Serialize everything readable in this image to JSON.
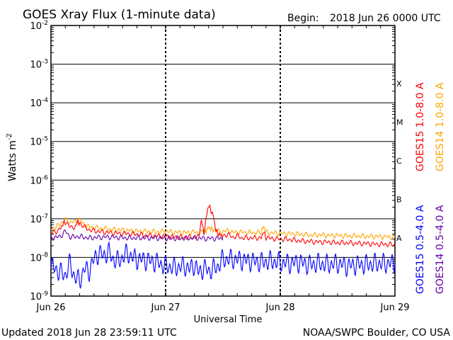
{
  "chart_data": {
    "type": "line",
    "title": "GOES Xray Flux (1-minute data)",
    "begin_label": "Begin:",
    "begin_value": "2018 Jun 26 0000 UTC",
    "xlabel": "Universal Time",
    "ylabel_main": "Watts m",
    "ylabel_exp": "-2",
    "yscale": "log",
    "ylim": [
      1e-09,
      0.01
    ],
    "xlim": [
      0,
      72
    ],
    "x_unit": "hours since 2018 Jun 26 0000 UTC",
    "x_ticks": [
      {
        "x": 0,
        "label": "Jun 26"
      },
      {
        "x": 24,
        "label": "Jun 27"
      },
      {
        "x": 48,
        "label": "Jun 28"
      },
      {
        "x": 72,
        "label": "Jun 29"
      }
    ],
    "y_ticks": [
      {
        "exp": -2,
        "base": "10"
      },
      {
        "exp": -3,
        "base": "10"
      },
      {
        "exp": -4,
        "base": "10"
      },
      {
        "exp": -5,
        "base": "10"
      },
      {
        "exp": -6,
        "base": "10"
      },
      {
        "exp": -7,
        "base": "10"
      },
      {
        "exp": -8,
        "base": "10"
      },
      {
        "exp": -9,
        "base": "10"
      }
    ],
    "flare_classes": [
      {
        "label": "X",
        "value": 0.0001
      },
      {
        "label": "M",
        "value": 1e-05
      },
      {
        "label": "C",
        "value": 1e-06
      },
      {
        "label": "B",
        "value": 1e-07
      },
      {
        "label": "A",
        "value": 1e-08
      }
    ],
    "series": [
      {
        "name": "GOES15 1.0-8.0 A",
        "color": "#ff0000",
        "x": [
          0,
          1,
          2,
          2.5,
          3,
          4,
          5,
          5.5,
          6,
          7,
          8,
          9,
          10,
          12,
          14,
          16,
          18,
          20,
          22,
          24,
          26,
          28,
          30,
          31,
          31.5,
          32,
          32.5,
          33,
          33.5,
          34,
          34.5,
          35,
          35.5,
          36,
          37,
          38,
          39,
          40,
          42,
          44,
          44.5,
          45,
          46,
          48,
          50,
          52,
          54,
          56,
          58,
          60,
          62,
          64,
          66,
          68,
          70,
          72
        ],
        "y": [
          4.3e-08,
          4.6e-08,
          5.6e-08,
          7.2e-08,
          8.3e-08,
          6.2e-08,
          6.1e-08,
          8.2e-08,
          7.9e-08,
          6.1e-08,
          5.2e-08,
          4.9e-08,
          4.7e-08,
          4.4e-08,
          4.2e-08,
          4.1e-08,
          4e-08,
          3.7e-08,
          3.6e-08,
          3.5e-08,
          3.4e-08,
          3.3e-08,
          3.3e-08,
          3.4e-08,
          1e-07,
          3.9e-08,
          1.1e-07,
          2.3e-07,
          1.6e-07,
          1.2e-07,
          5.1e-08,
          4e-08,
          3.8e-08,
          3.6e-08,
          4e-08,
          3.3e-08,
          3.6e-08,
          3.2e-08,
          3.2e-08,
          3.2e-08,
          4.6e-08,
          3.3e-08,
          3.1e-08,
          3e-08,
          2.9e-08,
          2.7e-08,
          2.6e-08,
          2.5e-08,
          2.5e-08,
          2.4e-08,
          2.4e-08,
          2.3e-08,
          2.3e-08,
          2.2e-08,
          2.2e-08,
          2.1e-08
        ]
      },
      {
        "name": "GOES14 1.0-8.0 A",
        "color": "#ffa500",
        "x": [
          0,
          1,
          2,
          3,
          4,
          5,
          6,
          7,
          8,
          9,
          10,
          12,
          14,
          16,
          18,
          20,
          22,
          24,
          26,
          28,
          30,
          31,
          31.5,
          32,
          32.5,
          33,
          33.5,
          34,
          35,
          36,
          37,
          38,
          40,
          42,
          44,
          44.5,
          45,
          46,
          48,
          50,
          52,
          54,
          56,
          58,
          60,
          62,
          64,
          66,
          68,
          70,
          72
        ],
        "y": [
          5.5e-08,
          6e-08,
          7.5e-08,
          9.5e-08,
          8e-08,
          8.5e-08,
          9.5e-08,
          7e-08,
          6.2e-08,
          6e-08,
          5.7e-08,
          5.4e-08,
          5.2e-08,
          5e-08,
          4.8e-08,
          4.7e-08,
          4.6e-08,
          4.7e-08,
          4.5e-08,
          4.4e-08,
          4.5e-08,
          4.4e-08,
          5e-08,
          4.6e-08,
          5e-08,
          6e-08,
          5.5e-08,
          5.2e-08,
          4.8e-08,
          4.6e-08,
          5e-08,
          4.5e-08,
          4.5e-08,
          4.4e-08,
          4.4e-08,
          6.5e-08,
          4.5e-08,
          4.3e-08,
          4.2e-08,
          4.1e-08,
          4e-08,
          3.8e-08,
          3.8e-08,
          3.7e-08,
          3.7e-08,
          3.6e-08,
          3.6e-08,
          3.5e-08,
          3.5e-08,
          3.4e-08,
          3.3e-08
        ]
      },
      {
        "name": "GOES15 0.5-4.0 A",
        "color": "#0000ff",
        "x": [
          0,
          1,
          2,
          3,
          4,
          5,
          6,
          7,
          8,
          9,
          10,
          11,
          12,
          13,
          14,
          15,
          16,
          17,
          18,
          20,
          22,
          24,
          26,
          28,
          29,
          30,
          31,
          32,
          33,
          34,
          35,
          36,
          38,
          40,
          42,
          44,
          46,
          48,
          50,
          52,
          54,
          56,
          58,
          60,
          62,
          64,
          66,
          68,
          70,
          72
        ],
        "y": [
          6e-09,
          5e-09,
          4e-09,
          3.5e-09,
          7e-09,
          3e-09,
          2.5e-09,
          5e-09,
          4.5e-09,
          9e-09,
          1.3e-08,
          1.1e-08,
          1.4e-08,
          9e-09,
          8e-09,
          1e-08,
          1.3e-08,
          1e-08,
          9e-09,
          8.5e-09,
          7.5e-09,
          6e-09,
          5.5e-09,
          6e-09,
          5e-09,
          6.5e-09,
          4e-09,
          5.5e-09,
          4.5e-09,
          5e-09,
          6e-09,
          9e-09,
          9e-09,
          8.5e-09,
          8e-09,
          7.5e-09,
          8e-09,
          7.5e-09,
          7e-09,
          7.5e-09,
          6.5e-09,
          7e-09,
          6.5e-09,
          7e-09,
          6e-09,
          6.5e-09,
          6.5e-09,
          7e-09,
          7e-09,
          7e-09
        ]
      },
      {
        "name": "GOES14 0.5-4.0 A",
        "color": "#6600aa",
        "x": [
          0,
          1,
          2,
          3,
          4,
          5,
          6,
          7,
          8,
          10,
          12,
          14,
          16,
          18,
          20,
          22,
          24,
          26,
          28,
          30,
          32,
          34,
          36
        ],
        "y": [
          3.2e-08,
          3.3e-08,
          3.5e-08,
          4.8e-08,
          3.4e-08,
          3.4e-08,
          3.5e-08,
          3.3e-08,
          3.2e-08,
          3.3e-08,
          3.4e-08,
          3.3e-08,
          3.2e-08,
          3.2e-08,
          3.2e-08,
          3.2e-08,
          3.1e-08,
          3.1e-08,
          3.1e-08,
          3.2e-08,
          3.1e-08,
          3.1e-08,
          3.1e-08
        ]
      }
    ],
    "grid": true,
    "legend": "right side, vertical"
  },
  "footer": {
    "updated": "Updated 2018 Jun 28 23:59:11 UTC",
    "credit": "NOAA/SWPC Boulder, CO USA"
  }
}
